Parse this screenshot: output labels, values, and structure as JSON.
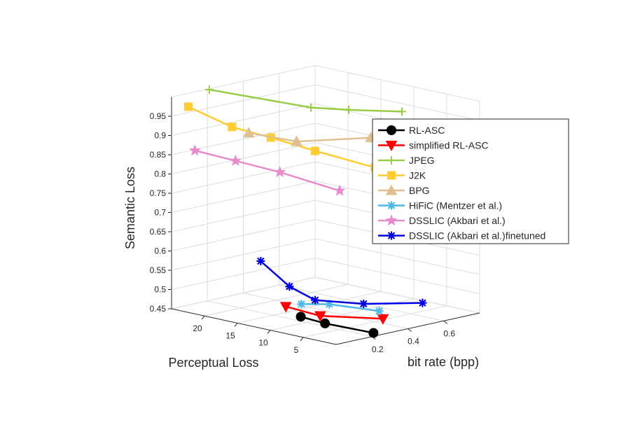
{
  "chart_data": {
    "type": "line",
    "title": "",
    "xlabel": "bit rate (bpp)",
    "ylabel": "Perceptual Loss",
    "zlabel": "Semantic Loss",
    "view": "3d",
    "xlim": [
      0,
      0.8
    ],
    "ylim": [
      0,
      25
    ],
    "zlim": [
      0.45,
      1.0
    ],
    "x_ticks": [
      "0.2",
      "0.4",
      "0.6"
    ],
    "y_ticks": [
      "20",
      "15",
      "10",
      "5"
    ],
    "z_ticks": [
      "0.45",
      "0.5",
      "0.55",
      "0.6",
      "0.65",
      "0.7",
      "0.75",
      "0.8",
      "0.85",
      "0.9",
      "0.95"
    ],
    "grid": true,
    "legend_position": "right",
    "series": [
      {
        "name": "RL-ASC",
        "color": "#000000",
        "marker": "circle",
        "x": [
          0.06,
          0.14,
          0.3
        ],
        "y": [
          7,
          5.5,
          2.5
        ],
        "z": [
          0.49,
          0.47,
          0.44
        ]
      },
      {
        "name": "simplified RL-ASC",
        "color": "#ff0000",
        "marker": "triangle-down",
        "x": [
          0.05,
          0.15,
          0.36
        ],
        "y": [
          9,
          6.5,
          2.7
        ],
        "z": [
          0.51,
          0.485,
          0.47
        ]
      },
      {
        "name": "JPEG",
        "color": "#99cc44",
        "marker": "plus",
        "x": [
          0.1,
          0.3,
          0.4,
          0.55
        ],
        "y": [
          22,
          12,
          9,
          5
        ],
        "z": [
          1.02,
          0.99,
          0.985,
          0.98
        ]
      },
      {
        "name": "J2K",
        "color": "#ffcc33",
        "marker": "square",
        "x": [
          0.02,
          0.08,
          0.15,
          0.25,
          0.4
        ],
        "y": [
          23,
          18,
          14,
          10,
          5
        ],
        "z": [
          0.98,
          0.94,
          0.92,
          0.89,
          0.85
        ]
      },
      {
        "name": "BPG",
        "color": "#e0c090",
        "marker": "triangle",
        "x": [
          0.1,
          0.22,
          0.45,
          0.5,
          0.55
        ],
        "y": [
          16,
          12,
          7,
          6,
          4
        ],
        "z": [
          0.93,
          0.91,
          0.915,
          0.885,
          0.855
        ]
      },
      {
        "name": "HiFiC (Mentzer et al.)",
        "color": "#4db8e6",
        "marker": "asterisk",
        "x": [
          0.1,
          0.2,
          0.35
        ],
        "y": [
          8,
          6.5,
          3
        ],
        "z": [
          0.515,
          0.51,
          0.49
        ]
      },
      {
        "name": "DSSLIC (Akbari et al.)",
        "color": "#e68ccc",
        "marker": "pentagram",
        "x": [
          0.02,
          0.1,
          0.2,
          0.35
        ],
        "y": [
          22,
          18,
          14,
          9
        ],
        "z": [
          0.87,
          0.85,
          0.825,
          0.78
        ]
      },
      {
        "name": "DSSLIC (Akbari et al.)finetuned",
        "color": "#0000e6",
        "marker": "asterisk",
        "x": [
          0.02,
          0.07,
          0.14,
          0.3,
          0.5
        ],
        "y": [
          12,
          9,
          7,
          4,
          0.5
        ],
        "z": [
          0.62,
          0.56,
          0.525,
          0.51,
          0.505
        ]
      }
    ]
  }
}
